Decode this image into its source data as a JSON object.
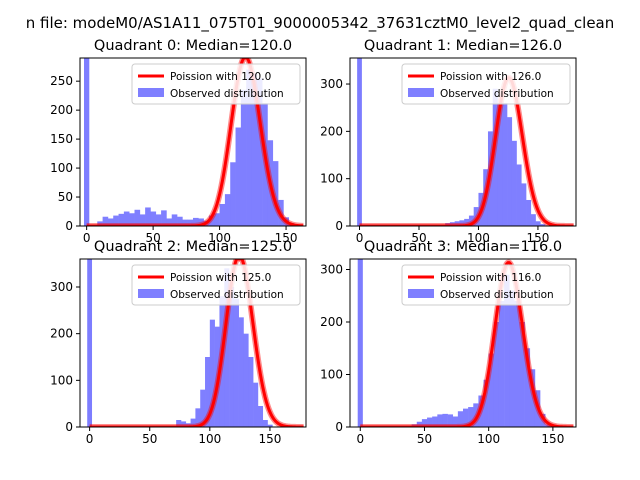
{
  "figure_title": "n file: modeM0/AS1A11_075T01_9000005342_37631cztM0_level2_quad_clean",
  "colors": {
    "poisson_line": "#ff0000",
    "observed_bars": "#7f7fff",
    "spike_bar": "#6666ff"
  },
  "chart_data": [
    {
      "type": "bar",
      "title": "Quadrant 0: Median=120.0",
      "xlim": [
        -5,
        165
      ],
      "ylim": [
        0,
        290
      ],
      "xticks": [
        0,
        50,
        100,
        150
      ],
      "yticks": [
        0,
        50,
        100,
        150,
        200,
        250
      ],
      "bin_width": 4,
      "spike": {
        "x": 0,
        "value": 290
      },
      "hist": {
        "start": 4,
        "values": [
          2,
          8,
          16,
          13,
          18,
          21,
          25,
          22,
          28,
          20,
          32,
          25,
          20,
          27,
          13,
          20,
          16,
          11,
          11,
          14,
          13,
          9,
          18,
          22,
          38,
          55,
          110,
          170,
          235,
          270,
          262,
          255,
          212,
          148,
          112,
          45,
          15,
          5
        ]
      },
      "poisson_mean": 120.0,
      "legend": {
        "line": "Poission with 120.0",
        "bars": "Observed distribution",
        "position": "top-right"
      }
    },
    {
      "type": "bar",
      "title": "Quadrant 1: Median=126.0",
      "xlim": [
        -8,
        182
      ],
      "ylim": [
        0,
        355
      ],
      "xticks": [
        0,
        50,
        100,
        150
      ],
      "yticks": [
        0,
        100,
        200,
        300
      ],
      "bin_width": 4,
      "spike": {
        "x": 0,
        "value": 355
      },
      "hist": {
        "start": 68,
        "values": [
          3,
          6,
          8,
          10,
          12,
          15,
          22,
          40,
          70,
          120,
          200,
          290,
          260,
          260,
          230,
          180,
          130,
          90,
          55,
          25,
          10,
          4
        ]
      },
      "poisson_mean": 126.0,
      "legend": {
        "line": "Poission with 126.0",
        "bars": "Observed distribution",
        "position": "top-right"
      }
    },
    {
      "type": "bar",
      "title": "Quadrant 2: Median=125.0",
      "xlim": [
        -8,
        180
      ],
      "ylim": [
        0,
        360
      ],
      "xticks": [
        0,
        50,
        100,
        150
      ],
      "yticks": [
        0,
        100,
        200,
        300
      ],
      "bin_width": 4,
      "spike": {
        "x": 0,
        "value": 360
      },
      "hist": {
        "start": 72,
        "values": [
          15,
          12,
          8,
          18,
          40,
          80,
          150,
          230,
          215,
          280,
          340,
          300,
          275,
          235,
          200,
          150,
          95,
          45,
          15,
          5
        ]
      },
      "poisson_mean": 125.0,
      "legend": {
        "line": "Poission with 125.0",
        "bars": "Observed distribution",
        "position": "top-right"
      }
    },
    {
      "type": "bar",
      "title": "Quadrant 3: Median=116.0",
      "xlim": [
        -8,
        168
      ],
      "ylim": [
        0,
        320
      ],
      "xticks": [
        0,
        50,
        100,
        150
      ],
      "yticks": [
        0,
        100,
        200,
        300
      ],
      "bin_width": 4,
      "spike": {
        "x": 0,
        "value": 320
      },
      "hist": {
        "start": 40,
        "values": [
          5,
          10,
          15,
          18,
          20,
          24,
          25,
          24,
          20,
          30,
          35,
          38,
          45,
          60,
          90,
          140,
          200,
          240,
          290,
          260,
          240,
          200,
          150,
          110,
          70,
          25,
          5
        ]
      },
      "poisson_mean": 116.0,
      "legend": {
        "line": "Poission with 116.0",
        "bars": "Observed distribution",
        "position": "top-right"
      }
    }
  ]
}
